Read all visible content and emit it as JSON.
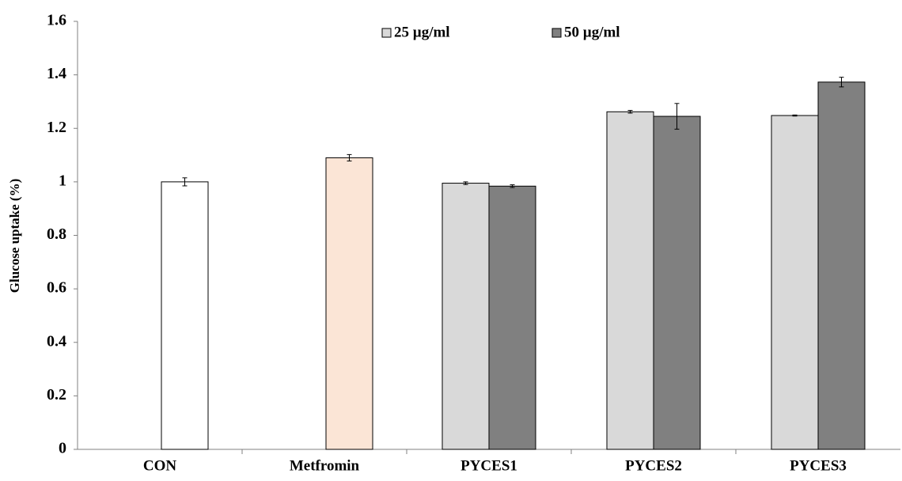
{
  "chart_data": {
    "type": "bar",
    "y_label": "Glucose uptake (%)",
    "categories": [
      "CON",
      "Metfromin",
      "PYCES1",
      "PYCES2",
      "PYCES3"
    ],
    "series": [
      {
        "values": [
          1.0,
          1.09,
          null,
          null,
          null
        ],
        "errors": [
          0.015,
          0.012,
          null,
          null,
          null
        ],
        "colors": [
          "#ffffff",
          "#fbe5d6",
          null,
          null,
          null
        ]
      },
      {
        "name": "25 µg/ml",
        "color": "#d9d9d9",
        "values": [
          null,
          null,
          0.995,
          1.262,
          1.248
        ],
        "errors": [
          null,
          null,
          0.005,
          0.005,
          0.002
        ]
      },
      {
        "name": "50 µg/ml",
        "color": "#808080",
        "values": [
          null,
          null,
          0.984,
          1.245,
          1.373
        ],
        "errors": [
          null,
          null,
          0.005,
          0.048,
          0.018
        ]
      }
    ],
    "ylim": [
      0,
      1.6
    ],
    "yticks": [
      0,
      0.2,
      0.4,
      0.6,
      0.8,
      1,
      1.2,
      1.4,
      1.6
    ],
    "legend": "top",
    "grid": false
  }
}
